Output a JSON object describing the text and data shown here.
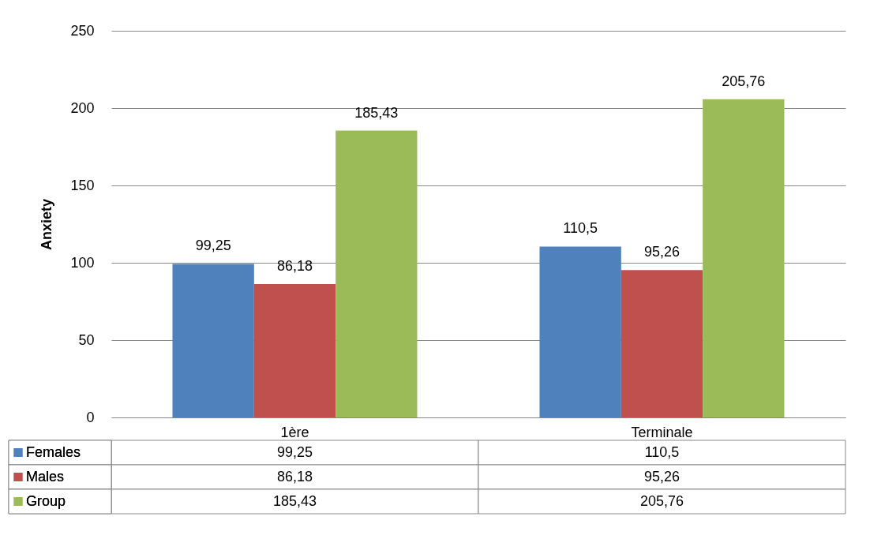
{
  "chart_data": {
    "type": "bar",
    "ylabel": "Anxiety",
    "categories": [
      "1ère",
      "Terminale"
    ],
    "series": [
      {
        "name": "Females",
        "color": "#4f81bd",
        "values": [
          99.25,
          110.5
        ],
        "value_labels": [
          "99,25",
          "110,5"
        ]
      },
      {
        "name": "Males",
        "color": "#c0504d",
        "values": [
          86.18,
          95.26
        ],
        "value_labels": [
          "86,18",
          "95,26"
        ]
      },
      {
        "name": "Group",
        "color": "#9bbb59",
        "values": [
          185.43,
          205.76
        ],
        "value_labels": [
          "185,43",
          "205,76"
        ]
      }
    ],
    "ylim": [
      0,
      250
    ],
    "yticks": [
      0,
      50,
      100,
      150,
      200,
      250
    ],
    "grid": "y",
    "legend": "bottom"
  }
}
